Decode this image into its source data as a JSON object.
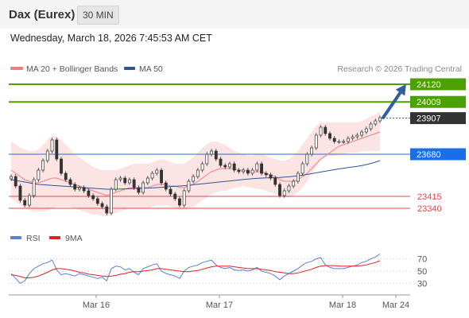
{
  "header": {
    "title": "Dax (Eurex)",
    "timeframe": "30 MIN",
    "timestamp": "Wednesday, March 18, 2026 7:45:53 AM CET"
  },
  "legend": {
    "bollinger": {
      "label": "MA 20 + Bollinger Bands",
      "color": "#f08080"
    },
    "ma50": {
      "label": "MA 50",
      "color": "#2f5597"
    },
    "rsi": {
      "label": "RSI",
      "color": "#5b7fd6"
    },
    "ma9": {
      "label": "9MA",
      "color": "#dd2222"
    }
  },
  "credit": "Research © 2026 Trading Central",
  "chart_data": {
    "type": "candlestick",
    "x_ticks": [
      "Mar 16",
      "Mar 17",
      "Mar 18",
      "Mar 24"
    ],
    "price_ylim": [
      23290,
      24160
    ],
    "levels": [
      {
        "value": 24120,
        "label": "24120",
        "kind": "resistance",
        "color": "#4ca000"
      },
      {
        "value": 24009,
        "label": "24009",
        "kind": "resistance",
        "color": "#4ca000"
      },
      {
        "value": 23907,
        "label": "23907",
        "kind": "last",
        "color": "#333333"
      },
      {
        "value": 23680,
        "label": "23680",
        "kind": "pivot",
        "color": "#1a6fe8"
      },
      {
        "value": 23415,
        "label": "23415",
        "kind": "support",
        "color": "#e04848"
      },
      {
        "value": 23340,
        "label": "23340",
        "kind": "support",
        "color": "#e04848"
      }
    ],
    "price_series": [
      23540,
      23480,
      23390,
      23360,
      23420,
      23520,
      23580,
      23640,
      23700,
      23770,
      23650,
      23560,
      23520,
      23490,
      23460,
      23470,
      23450,
      23420,
      23400,
      23370,
      23350,
      23310,
      23460,
      23520,
      23530,
      23500,
      23520,
      23470,
      23440,
      23500,
      23530,
      23560,
      23580,
      23500,
      23460,
      23430,
      23400,
      23360,
      23450,
      23510,
      23540,
      23580,
      23620,
      23680,
      23700,
      23650,
      23610,
      23600,
      23620,
      23580,
      23570,
      23580,
      23560,
      23580,
      23620,
      23560,
      23550,
      23530,
      23490,
      23420,
      23450,
      23480,
      23510,
      23560,
      23620,
      23680,
      23720,
      23800,
      23850,
      23810,
      23780,
      23760,
      23760,
      23760,
      23780,
      23790,
      23800,
      23820,
      23840,
      23870,
      23890,
      23910
    ],
    "ma20": [
      23580,
      23560,
      23540,
      23520,
      23510,
      23500,
      23500,
      23510,
      23520,
      23530,
      23530,
      23520,
      23510,
      23500,
      23490,
      23480,
      23470,
      23460,
      23450,
      23440,
      23430,
      23420,
      23430,
      23440,
      23450,
      23460,
      23470,
      23470,
      23470,
      23470,
      23470,
      23480,
      23490,
      23490,
      23490,
      23480,
      23480,
      23470,
      23470,
      23480,
      23490,
      23510,
      23530,
      23550,
      23570,
      23580,
      23590,
      23590,
      23590,
      23590,
      23580,
      23580,
      23570,
      23570,
      23570,
      23570,
      23560,
      23550,
      23540,
      23520,
      23510,
      23510,
      23510,
      23520,
      23540,
      23560,
      23590,
      23620,
      23650,
      23670,
      23690,
      23710,
      23730,
      23740,
      23750,
      23760,
      23770,
      23780,
      23790,
      23800,
      23810,
      23820
    ],
    "bb_upper": [
      23760,
      23740,
      23720,
      23710,
      23700,
      23700,
      23710,
      23740,
      23770,
      23800,
      23790,
      23770,
      23740,
      23710,
      23680,
      23660,
      23640,
      23620,
      23600,
      23590,
      23580,
      23580,
      23580,
      23580,
      23590,
      23600,
      23610,
      23620,
      23620,
      23620,
      23620,
      23630,
      23640,
      23650,
      23640,
      23630,
      23620,
      23620,
      23620,
      23640,
      23660,
      23690,
      23720,
      23740,
      23760,
      23760,
      23750,
      23740,
      23720,
      23700,
      23690,
      23680,
      23670,
      23670,
      23680,
      23680,
      23670,
      23660,
      23650,
      23640,
      23640,
      23650,
      23670,
      23700,
      23740,
      23780,
      23820,
      23860,
      23880,
      23880,
      23880,
      23880,
      23880,
      23880,
      23880,
      23880,
      23880,
      23890,
      23900,
      23920,
      23930,
      23950
    ],
    "bb_lower": [
      23400,
      23380,
      23360,
      23340,
      23330,
      23320,
      23320,
      23320,
      23330,
      23340,
      23350,
      23350,
      23350,
      23350,
      23340,
      23330,
      23320,
      23310,
      23300,
      23300,
      23290,
      23290,
      23300,
      23310,
      23320,
      23330,
      23340,
      23340,
      23340,
      23340,
      23340,
      23350,
      23360,
      23360,
      23360,
      23350,
      23340,
      23330,
      23330,
      23340,
      23350,
      23370,
      23390,
      23410,
      23430,
      23440,
      23450,
      23450,
      23460,
      23470,
      23470,
      23480,
      23470,
      23470,
      23460,
      23460,
      23450,
      23440,
      23430,
      23420,
      23410,
      23410,
      23420,
      23440,
      23470,
      23510,
      23560,
      23600,
      23640,
      23660,
      23670,
      23670,
      23680,
      23680,
      23690,
      23690,
      23690,
      23700,
      23700,
      23700,
      23700,
      23700
    ],
    "ma50": [
      23520,
      23515,
      23510,
      23505,
      23500,
      23495,
      23490,
      23488,
      23486,
      23484,
      23482,
      23480,
      23478,
      23476,
      23474,
      23472,
      23470,
      23468,
      23466,
      23464,
      23462,
      23460,
      23460,
      23460,
      23461,
      23462,
      23463,
      23464,
      23465,
      23466,
      23467,
      23468,
      23470,
      23472,
      23474,
      23476,
      23478,
      23480,
      23482,
      23485,
      23488,
      23491,
      23494,
      23497,
      23500,
      23503,
      23506,
      23509,
      23512,
      23515,
      23518,
      23521,
      23524,
      23526,
      23528,
      23530,
      23531,
      23532,
      23533,
      23534,
      23536,
      23538,
      23541,
      23544,
      23548,
      23553,
      23558,
      23563,
      23568,
      23573,
      23578,
      23583,
      23588,
      23592,
      23596,
      23600,
      23604,
      23609,
      23615,
      23622,
      23630,
      23640
    ],
    "rsi_ylim": [
      15,
      85
    ],
    "rsi_ticks": [
      "70",
      "50",
      "30"
    ],
    "rsi": [
      46,
      38,
      30,
      34,
      46,
      54,
      58,
      62,
      64,
      68,
      52,
      44,
      46,
      44,
      42,
      46,
      44,
      42,
      40,
      38,
      40,
      34,
      54,
      58,
      57,
      52,
      54,
      48,
      44,
      54,
      57,
      60,
      62,
      50,
      46,
      44,
      42,
      38,
      50,
      56,
      58,
      60,
      64,
      66,
      68,
      60,
      56,
      54,
      56,
      52,
      51,
      52,
      50,
      52,
      56,
      50,
      48,
      46,
      42,
      36,
      42,
      46,
      50,
      54,
      60,
      64,
      66,
      70,
      72,
      60,
      56,
      54,
      54,
      54,
      56,
      58,
      60,
      64,
      66,
      70,
      73,
      78
    ],
    "rsi_ma9": [
      44,
      43,
      41,
      39,
      39,
      40,
      42,
      45,
      48,
      52,
      54,
      54,
      53,
      52,
      50,
      48,
      47,
      45,
      44,
      43,
      42,
      41,
      42,
      43,
      45,
      46,
      48,
      49,
      49,
      50,
      51,
      52,
      54,
      54,
      53,
      52,
      51,
      50,
      49,
      49,
      50,
      51,
      53,
      55,
      57,
      58,
      58,
      58,
      58,
      57,
      56,
      55,
      54,
      54,
      54,
      53,
      52,
      51,
      49,
      48,
      47,
      46,
      46,
      47,
      49,
      51,
      53,
      56,
      58,
      59,
      59,
      59,
      58,
      58,
      58,
      58,
      58,
      59,
      60,
      62,
      64,
      67
    ]
  }
}
